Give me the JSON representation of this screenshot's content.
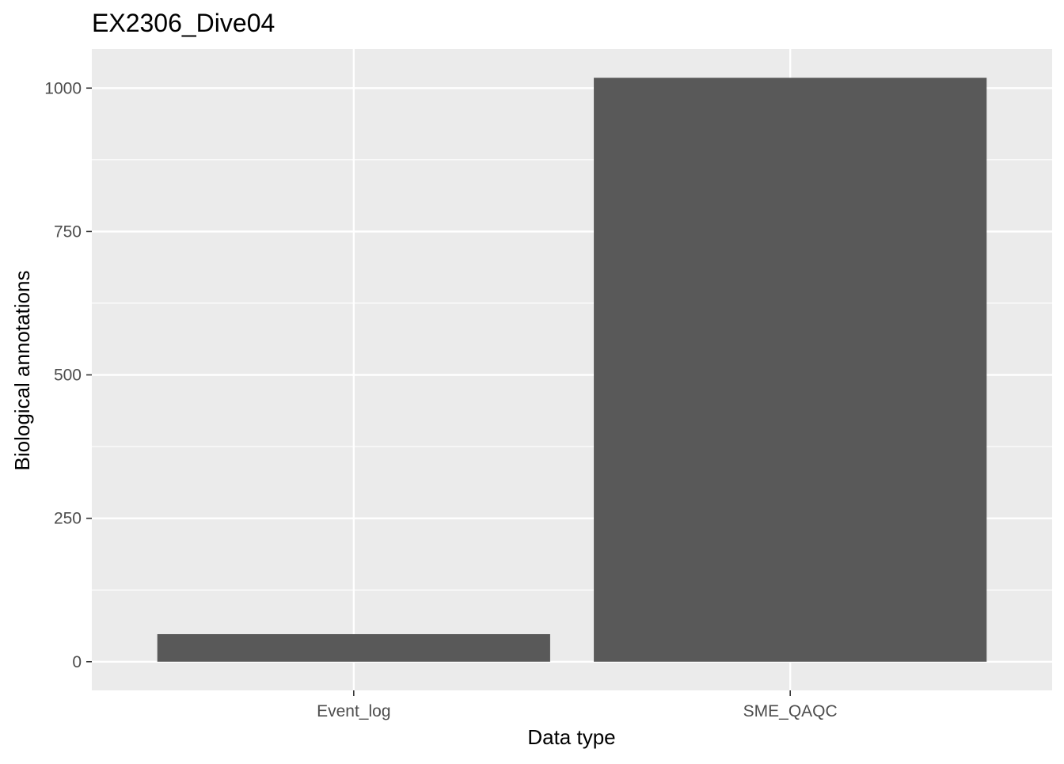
{
  "chart_data": {
    "type": "bar",
    "title": "EX2306_Dive04",
    "xlabel": "Data type",
    "ylabel": "Biological annotations",
    "categories": [
      "Event_log",
      "SME_QAQC"
    ],
    "values": [
      48,
      1018
    ],
    "ylim": [
      -50,
      1068
    ],
    "yticks": [
      0,
      250,
      500,
      750,
      1000
    ],
    "ytick_labels": [
      "0",
      "250",
      "500",
      "750",
      "1000"
    ],
    "grid": true,
    "legend": "none",
    "colors": {
      "panel_background": "#ebebeb",
      "grid_major": "#ffffff",
      "bar_fill": "#595959",
      "tick_text": "#4d4d4d",
      "tick_mark": "#333333"
    }
  }
}
